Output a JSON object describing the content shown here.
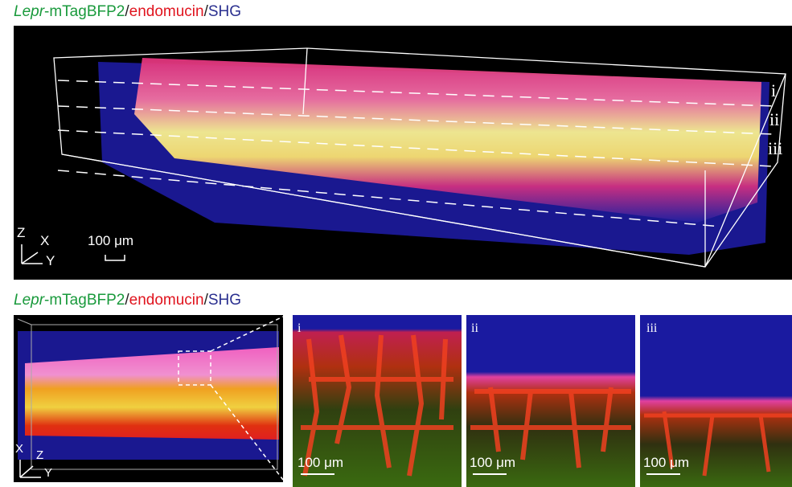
{
  "panel_a": {
    "title": {
      "gene": "Lepr",
      "rest": "-mTagBFP2",
      "slash1": "/",
      "marker": "endomucin",
      "slash2": "/",
      "channel": "SHG"
    },
    "section_labels": [
      "i",
      "ii",
      "iii"
    ],
    "axes": {
      "z": "Z",
      "x": "X",
      "y": "Y"
    },
    "scale_bar": "100 μm"
  },
  "panel_b": {
    "title": {
      "gene": "Lepr",
      "rest": "-mTagBFP2",
      "slash1": "/",
      "marker": "endomucin",
      "slash2": "/",
      "channel": "SHG"
    },
    "axes": {
      "x": "X",
      "z": "Z",
      "y": "Y"
    },
    "insets": [
      {
        "label": "i",
        "scale_bar": "100 μm"
      },
      {
        "label": "ii",
        "scale_bar": "100 μm"
      },
      {
        "label": "iii",
        "scale_bar": "100 μm"
      }
    ]
  },
  "colors": {
    "lepr": "#1a9a3c",
    "endomucin": "#e0141e",
    "shg": "#2a2f8f"
  }
}
